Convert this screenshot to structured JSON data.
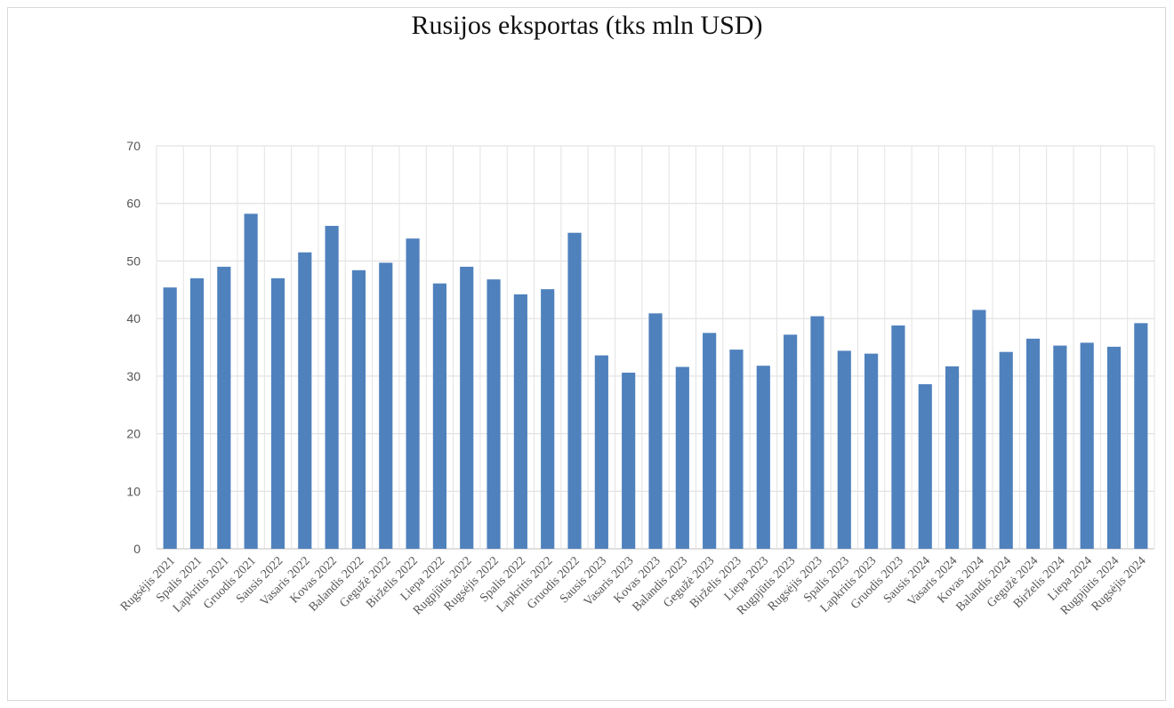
{
  "chart_data": {
    "type": "bar",
    "title": "Rusijos eksportas (tks mln USD)",
    "xlabel": "",
    "ylabel": "",
    "ylim": [
      0,
      70
    ],
    "yticks": [
      0,
      10,
      20,
      30,
      40,
      50,
      60,
      70
    ],
    "grid": true,
    "bar_color": "#4f81bd",
    "categories": [
      "Rugsėjis 2021",
      "Spalis 2021",
      "Lapkritis 2021",
      "Gruodis 2021",
      "Sausis 2022",
      "Vasaris 2022",
      "Kovas 2022",
      "Balandis 2022",
      "Gegužė 2022",
      "Birželis 2022",
      "Liepa 2022",
      "Rugpjūtis 2022",
      "Rugsėjis 2022",
      "Spalis 2022",
      "Lapkritis 2022",
      "Gruodis 2022",
      "Sausis 2023",
      "Vasaris 2023",
      "Kovas 2023",
      "Balandis 2023",
      "Gegužė 2023",
      "Birželis 2023",
      "Liepa 2023",
      "Rugpjūtis 2023",
      "Rugsėjis 2023",
      "Spalis 2023",
      "Lapkritis 2023",
      "Gruodis 2023",
      "Sausis 2024",
      "Vasaris 2024",
      "Kovas 2024",
      "Balandis 2024",
      "Gegužė 2024",
      "Birželis 2024",
      "Liepa 2024",
      "Rugpjūtis 2024",
      "Rugsėjis 2024"
    ],
    "values": [
      45.4,
      47.0,
      49.0,
      58.2,
      47.0,
      51.5,
      56.1,
      48.4,
      49.7,
      53.9,
      46.1,
      49.0,
      46.8,
      44.2,
      45.1,
      54.9,
      33.6,
      30.6,
      40.9,
      31.6,
      37.5,
      34.6,
      31.8,
      37.2,
      40.4,
      34.4,
      33.9,
      38.8,
      28.6,
      31.7,
      41.5,
      34.2,
      36.5,
      35.3,
      35.8,
      35.1,
      39.2
    ]
  }
}
